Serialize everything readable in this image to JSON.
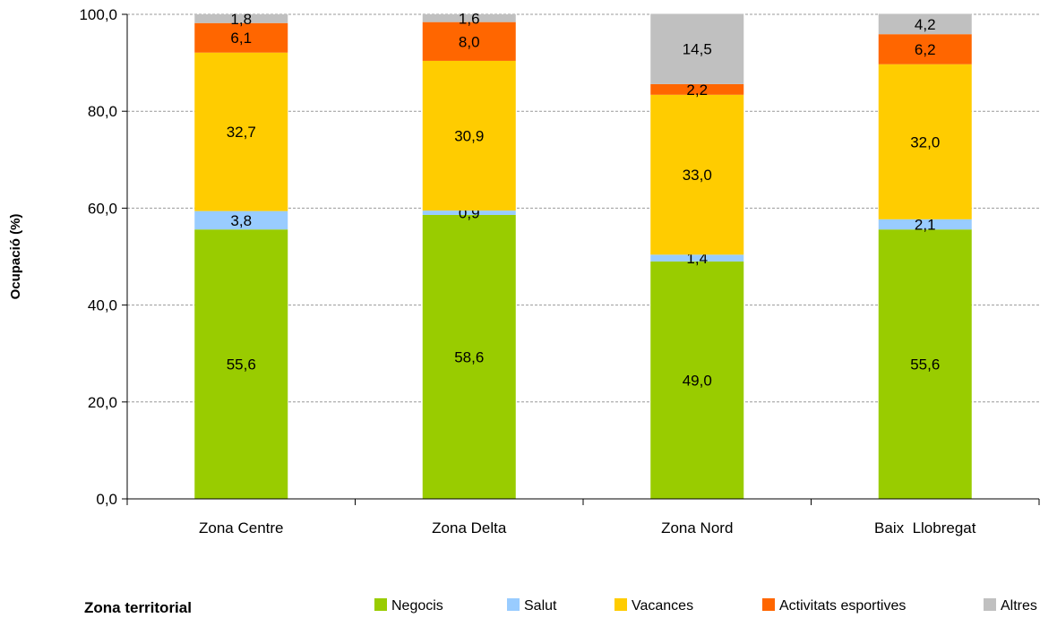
{
  "chart_data": {
    "type": "bar",
    "stacked": true,
    "categories": [
      "Zona Centre",
      "Zona Delta",
      "Zona Nord",
      "Baix  Llobregat"
    ],
    "series": [
      {
        "name": "Negocis",
        "color": "#99cc00",
        "values": [
          55.6,
          58.6,
          49.0,
          55.6
        ],
        "labels": [
          "55,6",
          "58,6",
          "49,0",
          "55,6"
        ]
      },
      {
        "name": "Salut",
        "color": "#99ccff",
        "values": [
          3.8,
          0.9,
          1.4,
          2.1
        ],
        "labels": [
          "3,8",
          "0,9",
          "1,4",
          "2,1"
        ]
      },
      {
        "name": "Vacances",
        "color": "#ffcc00",
        "values": [
          32.7,
          30.9,
          33.0,
          32.0
        ],
        "labels": [
          "32,7",
          "30,9",
          "33,0",
          "32,0"
        ]
      },
      {
        "name": "Activitats esportives",
        "color": "#ff6600",
        "values": [
          6.1,
          8.0,
          2.2,
          6.2
        ],
        "labels": [
          "6,1",
          "8,0",
          "2,2",
          "6,2"
        ]
      },
      {
        "name": "Altres",
        "color": "#c0c0c0",
        "values": [
          1.8,
          1.6,
          14.5,
          4.2
        ],
        "labels": [
          "1,8",
          "1,6",
          "14,5",
          "4,2"
        ]
      }
    ],
    "ylabel": "Ocupació (%)",
    "xlabel": "Zona territorial",
    "ylim": [
      0,
      100
    ],
    "yticks": [
      0,
      20,
      40,
      60,
      80,
      100
    ],
    "ytick_labels": [
      "0,0",
      "20,0",
      "40,0",
      "60,0",
      "80,0",
      "100,0"
    ],
    "grid": true,
    "legend_position": "bottom-right"
  }
}
